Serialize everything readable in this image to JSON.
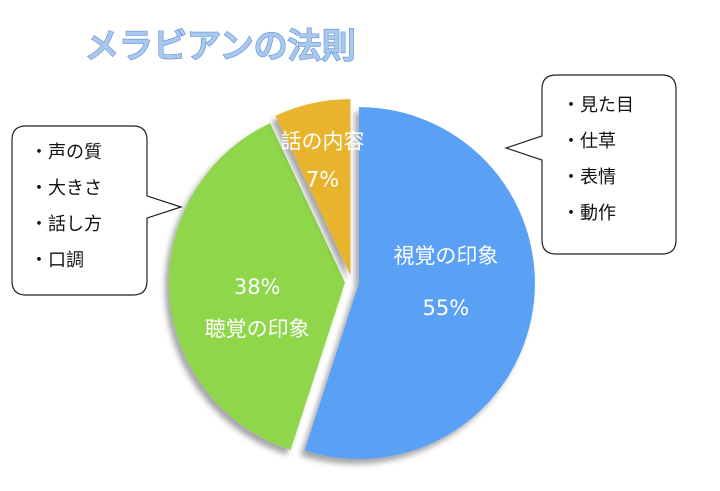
{
  "chart_data": {
    "type": "pie",
    "title": "メラビアンの法則",
    "categories": [
      "視覚の印象",
      "聴覚の印象",
      "話の内容"
    ],
    "values": [
      55,
      38,
      7
    ],
    "value_labels": [
      "55%",
      "38%",
      "7%"
    ],
    "colors": [
      "#5aa0f5",
      "#8fd64c",
      "#e8b42e"
    ],
    "callouts": [
      {
        "items": [
          "・見た目",
          "・仕草",
          "・表情",
          "・動作"
        ]
      },
      {
        "items": [
          "・声の質",
          "・大きさ",
          "・話し方",
          "・口調"
        ]
      }
    ]
  }
}
